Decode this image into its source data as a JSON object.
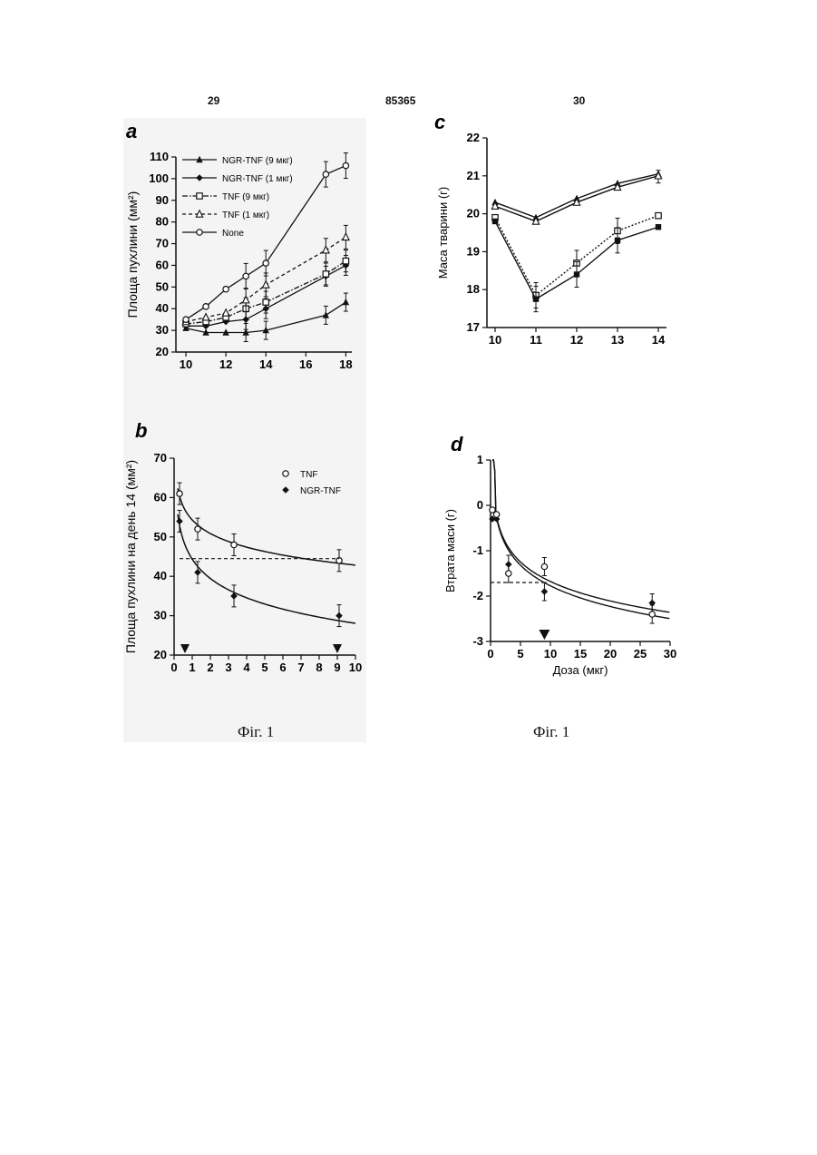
{
  "header": {
    "left_page": "29",
    "doc_number": "85365",
    "right_page": "30"
  },
  "captions": {
    "left": "Фіг. 1",
    "right": "Фіг. 1"
  },
  "chart_data": [
    {
      "panel": "a",
      "type": "line",
      "title": "",
      "xlabel": "",
      "ylabel": "Площа пухлини (мм²)",
      "xlim": [
        9.5,
        18.3
      ],
      "ylim": [
        20,
        110
      ],
      "xticks": [
        10,
        12,
        14,
        16,
        18
      ],
      "yticks": [
        20,
        30,
        40,
        50,
        60,
        70,
        80,
        90,
        100,
        110
      ],
      "legend_position": "top-left",
      "series": [
        {
          "name": "NGR-TNF (9 мкг)",
          "style": "solid",
          "marker": "filled-triangle",
          "x": [
            10,
            11,
            12,
            13,
            14,
            17,
            18
          ],
          "y": [
            31,
            29,
            29,
            29,
            30,
            37,
            43
          ]
        },
        {
          "name": "NGR-TNF (1 мкг)",
          "style": "solid",
          "marker": "filled-diamond",
          "x": [
            10,
            11,
            12,
            13,
            14,
            17,
            18
          ],
          "y": [
            32,
            32,
            34,
            35,
            40,
            55,
            60
          ]
        },
        {
          "name": "TNF (9 мкг)",
          "style": "dash-dot",
          "marker": "open-square",
          "x": [
            10,
            11,
            12,
            13,
            14,
            17,
            18
          ],
          "y": [
            33,
            34,
            36,
            40,
            43,
            56,
            62
          ]
        },
        {
          "name": "TNF (1 мкг)",
          "style": "dashed",
          "marker": "open-triangle",
          "x": [
            10,
            11,
            12,
            13,
            14,
            17,
            18
          ],
          "y": [
            34,
            36,
            38,
            44,
            51,
            67,
            73
          ]
        },
        {
          "name": "None",
          "style": "solid",
          "marker": "open-circle",
          "x": [
            10,
            11,
            12,
            13,
            14,
            17,
            18
          ],
          "y": [
            35,
            41,
            49,
            55,
            61,
            102,
            106
          ]
        }
      ]
    },
    {
      "panel": "b",
      "type": "scatter",
      "title": "",
      "xlabel": "",
      "ylabel": "Площа пухлини на день 14 (мм²)",
      "xlim": [
        0,
        10
      ],
      "ylim": [
        20,
        70
      ],
      "xticks": [
        0,
        1,
        2,
        3,
        4,
        5,
        6,
        7,
        8,
        9,
        10
      ],
      "yticks": [
        20,
        30,
        40,
        50,
        60,
        70
      ],
      "legend_position": "top-right",
      "reference_line_y": 44.5,
      "arrow_markers_x": [
        0.6,
        9
      ],
      "series": [
        {
          "name": "TNF",
          "marker": "open-circle",
          "x": [
            0.3,
            1.3,
            3.3,
            9.1
          ],
          "y": [
            61,
            52,
            48,
            44
          ]
        },
        {
          "name": "NGR-TNF",
          "marker": "filled-diamond",
          "x": [
            0.3,
            1.3,
            3.3,
            9.1
          ],
          "y": [
            54,
            41,
            35,
            30
          ]
        }
      ]
    },
    {
      "panel": "c",
      "type": "line",
      "title": "",
      "xlabel": "",
      "ylabel": "Маса тварини (г)",
      "xlim": [
        9.8,
        14.2
      ],
      "ylim": [
        17,
        22
      ],
      "xticks": [
        10,
        11,
        12,
        13,
        14
      ],
      "yticks": [
        17,
        18,
        19,
        20,
        21,
        22
      ],
      "series": [
        {
          "marker": "filled-triangle",
          "style": "solid",
          "x": [
            10,
            11,
            12,
            13,
            14
          ],
          "y": [
            20.3,
            19.9,
            20.4,
            20.8,
            21.05
          ]
        },
        {
          "marker": "open-triangle",
          "style": "solid",
          "x": [
            10,
            11,
            12,
            13,
            14
          ],
          "y": [
            20.2,
            19.8,
            20.3,
            20.7,
            21.0
          ]
        },
        {
          "marker": "open-square",
          "style": "dotted",
          "x": [
            10,
            11,
            12,
            13,
            14
          ],
          "y": [
            19.9,
            17.85,
            18.7,
            19.55,
            19.95
          ]
        },
        {
          "marker": "filled-square",
          "style": "solid",
          "x": [
            10,
            11,
            12,
            13,
            14
          ],
          "y": [
            19.8,
            17.75,
            18.4,
            19.3,
            19.65
          ]
        }
      ]
    },
    {
      "panel": "d",
      "type": "scatter",
      "title": "",
      "xlabel": "Доза (мкг)",
      "ylabel": "Втрата маси (г)",
      "xlim": [
        0,
        30
      ],
      "ylim": [
        -3,
        1
      ],
      "xticks": [
        0,
        5,
        10,
        15,
        20,
        25,
        30
      ],
      "yticks": [
        -3,
        -2,
        -1,
        0,
        1
      ],
      "reference_line_y": -1.7,
      "arrow_markers_x": [
        9
      ],
      "series": [
        {
          "marker": "filled-diamond",
          "x": [
            0.3,
            1,
            3,
            9,
            27
          ],
          "y": [
            -0.3,
            -0.3,
            -1.3,
            -1.9,
            -2.15
          ]
        },
        {
          "marker": "open-circle",
          "x": [
            0.3,
            1,
            3,
            9,
            27
          ],
          "y": [
            -0.1,
            -0.2,
            -1.5,
            -1.35,
            -2.4
          ]
        }
      ]
    }
  ]
}
